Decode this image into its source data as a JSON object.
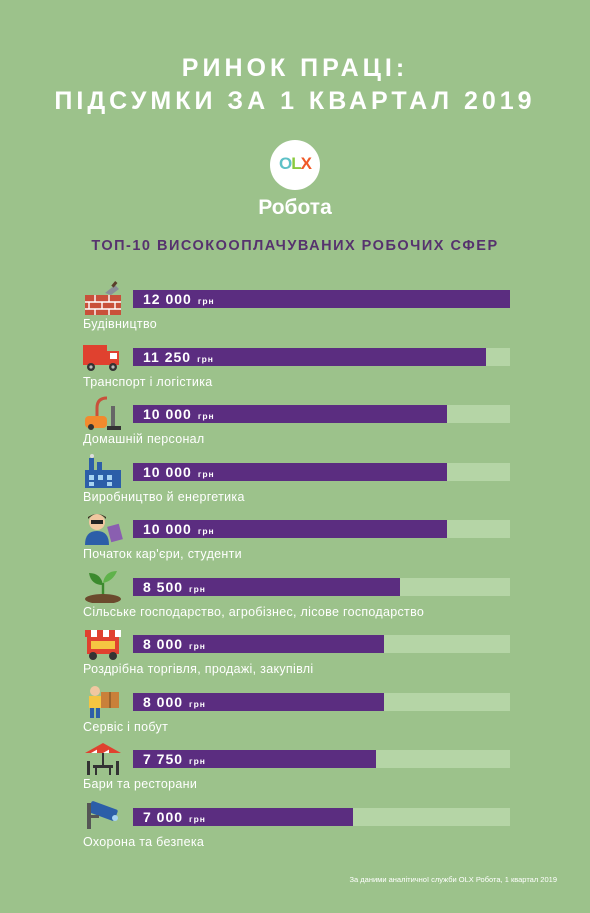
{
  "header": {
    "title_line1": "РИНОК ПРАЦІ:",
    "title_line2": "ПІДСУМКИ ЗА 1 КВАРТАЛ 2019",
    "logo": {
      "letters": [
        "O",
        "L",
        "X"
      ],
      "text": "Робота"
    },
    "subtitle": "ТОП-10 ВИСОКООПЛАЧУВАНИХ РОБОЧИХ СФЕР"
  },
  "colors": {
    "background": "#9cc28b",
    "bar": "#5b2d80",
    "track": "#b5d5a6",
    "logo_o": "#5ec1c7",
    "logo_l": "#8aca3e",
    "logo_x": "#f05a28"
  },
  "chart_data": {
    "type": "bar",
    "orientation": "horizontal",
    "title": "ТОП-10 ВИСОКООПЛАЧУВАНИХ РОБОЧИХ СФЕР",
    "unit": "грн",
    "xlim": [
      0,
      12000
    ],
    "categories": [
      "Будівництво",
      "Транспорт і логістика",
      "Домашній персонал",
      "Виробництво й енергетика",
      "Початок кар'єри, студенти",
      "Сільське господарство, агробізнес, лісове господарство",
      "Роздрібна торгівля, продажі, закупівлі",
      "Сервіс і побут",
      "Бари та ресторани",
      "Охорона та безпека"
    ],
    "values": [
      12000,
      11250,
      10000,
      10000,
      10000,
      8500,
      8000,
      8000,
      7750,
      7000
    ],
    "value_labels": [
      "12 000",
      "11 250",
      "10 000",
      "10 000",
      "10 000",
      "8 500",
      "8 000",
      "8 000",
      "7 750",
      "7 000"
    ],
    "icons": [
      "brick-wall-icon",
      "truck-icon",
      "vacuum-cleaner-icon",
      "factory-icon",
      "student-icon",
      "sprout-icon",
      "market-stall-icon",
      "courier-icon",
      "cafe-table-icon",
      "security-camera-icon"
    ]
  },
  "footer": {
    "source": "За даними аналітичної служби OLX Робота, 1 квартал 2019"
  }
}
